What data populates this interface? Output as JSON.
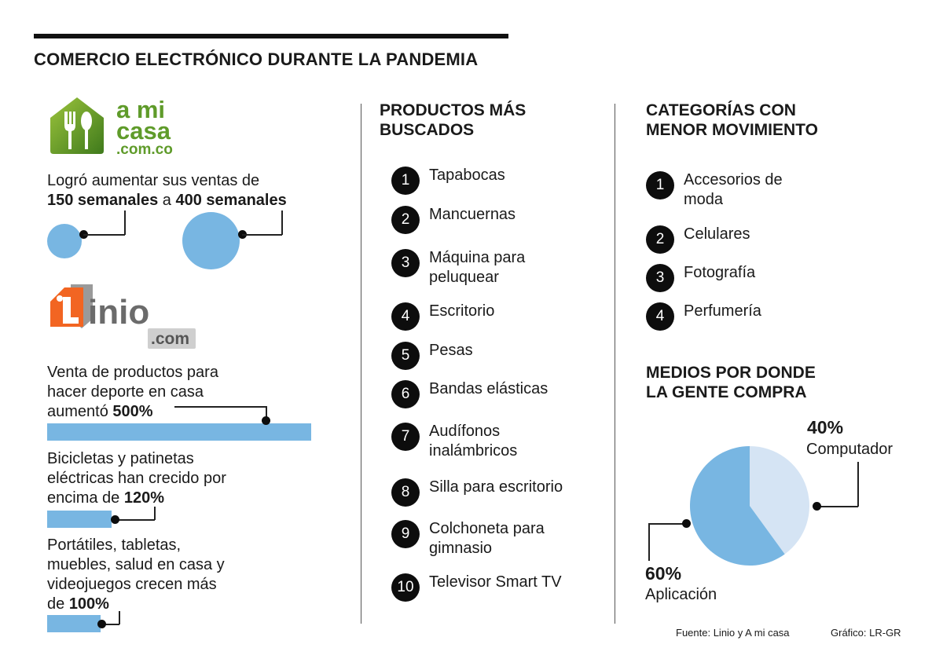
{
  "title": "COMERCIO ELECTRÓNICO DURANTE LA PANDEMIA",
  "amicasa": {
    "logo_text": "a mi casa .com.co",
    "stat_line1": "Logró aumentar sus ventas de",
    "from_value": "150 semanales",
    "connector": "a",
    "to_value": "400 semanales"
  },
  "linio": {
    "logo_text": "Linio .com",
    "stat1": {
      "text_l1": "Venta de productos para",
      "text_l2": "hacer deporte en casa",
      "text_l3": "aumentó",
      "value_label": "500%",
      "value": 500
    },
    "stat2": {
      "text_l1": "Bicicletas y patinetas",
      "text_l2": "eléctricas han crecido por",
      "text_l3": "encima de",
      "value_label": "120%",
      "value": 120
    },
    "stat3": {
      "text_l1": "Portátiles, tabletas,",
      "text_l2": "muebles, salud en casa y",
      "text_l3": "videojuegos crecen más",
      "text_l4": "de",
      "value_label": "100%",
      "value": 100
    }
  },
  "productos": {
    "title_l1": "PRODUCTOS MÁS",
    "title_l2": "BUSCADOS",
    "items": [
      {
        "num": "1",
        "l1": "Tapabocas"
      },
      {
        "num": "2",
        "l1": "Mancuernas"
      },
      {
        "num": "3",
        "l1": "Máquina para",
        "l2": "peluquear"
      },
      {
        "num": "4",
        "l1": "Escritorio"
      },
      {
        "num": "5",
        "l1": "Pesas"
      },
      {
        "num": "6",
        "l1": "Bandas elásticas"
      },
      {
        "num": "7",
        "l1": "Audífonos",
        "l2": "inalámbricos"
      },
      {
        "num": "8",
        "l1": "Silla para escritorio"
      },
      {
        "num": "9",
        "l1": "Colchoneta para",
        "l2": "gimnasio"
      },
      {
        "num": "10",
        "l1": "Televisor Smart TV"
      }
    ]
  },
  "categorias": {
    "title_l1": "CATEGORÍAS CON",
    "title_l2": "MENOR MOVIMIENTO",
    "items": [
      {
        "num": "1",
        "l1": "Accesorios de",
        "l2": "moda"
      },
      {
        "num": "2",
        "l1": "Celulares"
      },
      {
        "num": "3",
        "l1": "Fotografía"
      },
      {
        "num": "4",
        "l1": "Perfumería"
      }
    ]
  },
  "medios": {
    "title_l1": "MEDIOS POR DONDE",
    "title_l2": "LA GENTE COMPRA"
  },
  "chart_data": {
    "type": "pie",
    "title": "MEDIOS POR DONDE LA GENTE COMPRA",
    "slices": [
      {
        "label": "Computador",
        "value": 40,
        "value_label": "40%",
        "color": "#d5e4f4"
      },
      {
        "label": "Aplicación",
        "value": 60,
        "value_label": "60%",
        "color": "#78b6e2"
      }
    ]
  },
  "footer": {
    "source": "Fuente: Linio y A mi casa",
    "credit": "Gráfico: LR-GR"
  },
  "colors": {
    "accent_blue": "#78b6e2",
    "light_blue": "#d5e4f4",
    "logo_green": "#6a9e2a",
    "linio_orange": "#f26522"
  }
}
